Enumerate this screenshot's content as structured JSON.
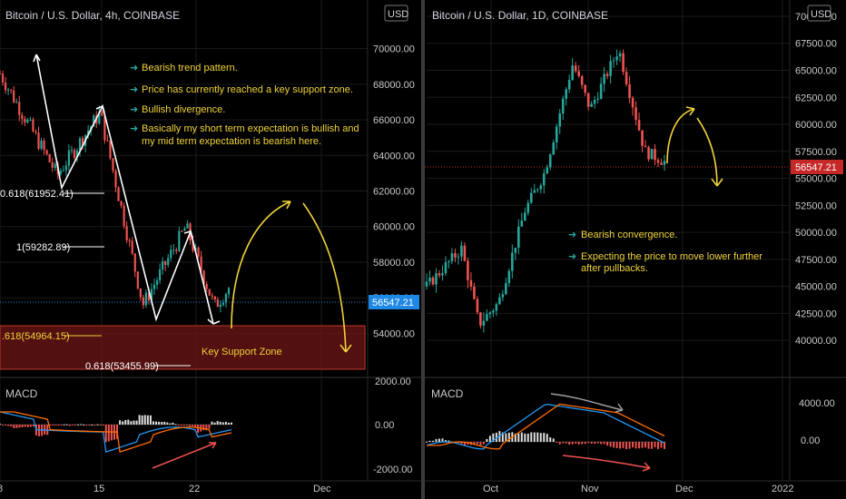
{
  "colors": {
    "up": "#26a69a",
    "down": "#ef5350",
    "bg": "#000000",
    "grid": "#1b1b1b",
    "text": "#c8c8c8",
    "accent": "#f0d33a",
    "price_tag": "#1e88e5",
    "price_tag_red": "#c62828",
    "zone": "#8a1f1f",
    "macd_line": "#2196f3",
    "signal_line": "#ff6d00",
    "arrow_red": "#ef5350"
  },
  "currency_badge": "USD",
  "left": {
    "title": "Bitcoin / U.S. Dollar, 4h, COINBASE",
    "annotations": [
      "Bearish trend pattern.",
      "Price has currently reached a key support zone.",
      "Bullish divergence.",
      "Basically my short term expectation is bullish and",
      "my mid term expectation is bearish here."
    ],
    "fib_levels": [
      "0.618(61952.41)",
      "1(59282.89)",
      ".618(54964.15)",
      "0.618(53455.99)"
    ],
    "zone_label": "Key Support Zone",
    "price_label": "56547.21",
    "macd_label": "MACD",
    "macd_ticks": [
      "2000.00",
      "0.00",
      "-2000.00"
    ],
    "x_ticks": [
      "8",
      "15",
      "22",
      "Dec"
    ]
  },
  "right": {
    "title": "Bitcoin / U.S. Dollar, 1D, COINBASE",
    "annotations": [
      "Bearish convergence.",
      "Expecting the price to move lower further",
      "after pullbacks."
    ],
    "price_label": "56547.21",
    "macd_label": "MACD",
    "macd_ticks": [
      "4000.00",
      "0.00"
    ],
    "x_ticks": [
      "Oct",
      "Nov",
      "Dec",
      "2022"
    ]
  },
  "chart_data": [
    {
      "type": "candlestick",
      "title": "Bitcoin / U.S. Dollar, 4h, COINBASE",
      "x_ticks": [
        "8",
        "15",
        "22",
        "Dec"
      ],
      "y_ticks": [
        54000,
        56000,
        58000,
        60000,
        62000,
        64000,
        66000,
        68000,
        70000
      ],
      "ylim": [
        52900,
        71000
      ],
      "last_price": 56547.21,
      "path_points": [
        [
          8,
          68600
        ],
        [
          12,
          62900
        ],
        [
          15,
          66400
        ],
        [
          18,
          55600
        ],
        [
          21,
          60000
        ],
        [
          23,
          55500
        ],
        [
          24,
          56547.21
        ]
      ],
      "fibonacci": [
        {
          "label": "0.618(61952.41)",
          "value": 61952.41
        },
        {
          "label": "1(59282.89)",
          "value": 59282.89
        },
        {
          "label": ".618(54964.15)",
          "value": 54964.15
        },
        {
          "label": "0.618(53455.99)",
          "value": 53455.99
        }
      ],
      "support_zone": [
        53000,
        55400
      ],
      "macd": {
        "y_ticks": [
          2000,
          0,
          -2000
        ],
        "ylim": [
          -2300,
          2300
        ]
      }
    },
    {
      "type": "candlestick",
      "title": "Bitcoin / U.S. Dollar, 1D, COINBASE",
      "x_ticks": [
        "Oct",
        "Nov",
        "Dec",
        "2022"
      ],
      "y_ticks": [
        40000,
        42500,
        45000,
        47500,
        50000,
        52500,
        55000,
        57500,
        60000,
        62500,
        65000,
        67500,
        70000
      ],
      "ylim": [
        38500,
        70500
      ],
      "last_price": 56547.21,
      "path_points": [
        [
          0,
          45000
        ],
        [
          0.16,
          48500
        ],
        [
          0.24,
          41500
        ],
        [
          0.33,
          43500
        ],
        [
          0.45,
          52000
        ],
        [
          0.54,
          55500
        ],
        [
          0.62,
          61800
        ],
        [
          0.67,
          65600
        ],
        [
          0.75,
          61400
        ],
        [
          0.88,
          67000
        ],
        [
          0.93,
          63000
        ],
        [
          1.0,
          57500
        ],
        [
          1.09,
          56547.21
        ]
      ],
      "macd": {
        "y_ticks": [
          4000,
          0
        ],
        "ylim": [
          -1500,
          5000
        ]
      }
    }
  ]
}
